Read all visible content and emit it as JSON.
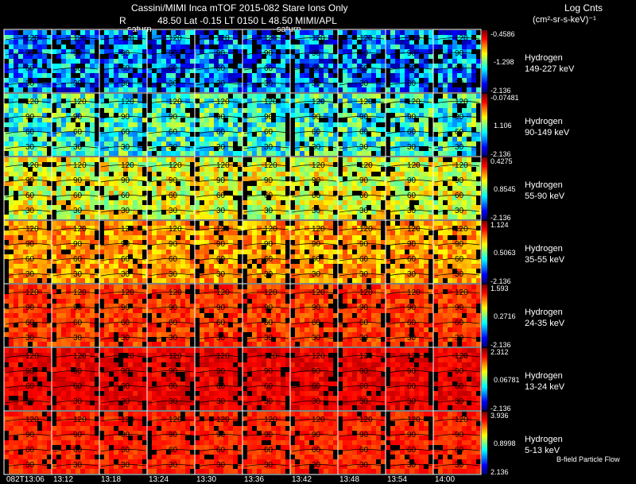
{
  "header": {
    "line1": "Cassini/MIMI Inca mTOF  2015-082   Stare   Ions Only",
    "line2_r": "R",
    "line2_rest": "48.50 Lat -0.15 LT 0150 L         48.50  MIMI/APL",
    "saturn_labels": [
      "saturn",
      "saturn"
    ],
    "units_title": "Log Cnts",
    "units": "(cm²-sr-s-keV)⁻¹"
  },
  "panels": [
    {
      "species": "Hydrogen",
      "energy": "149-227 keV",
      "cb_max": "-0.4586",
      "cb_mid": "-1.298",
      "cb_min": "-2.136",
      "level": 0.25,
      "spread": 0.22,
      "missing": 0.12
    },
    {
      "species": "Hydrogen",
      "energy": "90-149 keV",
      "cb_max": "-0.07481",
      "cb_mid": "1.106",
      "cb_min": "-2.136",
      "level": 0.42,
      "spread": 0.18,
      "missing": 0.08
    },
    {
      "species": "Hydrogen",
      "energy": "55-90 keV",
      "cb_max": "0.4275",
      "cb_mid": "0.8545",
      "cb_min": "-2.136",
      "level": 0.6,
      "spread": 0.14,
      "missing": 0.06
    },
    {
      "species": "Hydrogen",
      "energy": "35-55 keV",
      "cb_max": "1.124",
      "cb_mid": "0.5063",
      "cb_min": "-2.136",
      "level": 0.72,
      "spread": 0.1,
      "missing": 0.05
    },
    {
      "species": "Hydrogen",
      "energy": "24-35 keV",
      "cb_max": "1.593",
      "cb_mid": "0.2716",
      "cb_min": "-2.136",
      "level": 0.82,
      "spread": 0.07,
      "missing": 0.05
    },
    {
      "species": "Hydrogen",
      "energy": "13-24 keV",
      "cb_max": "2.312",
      "cb_mid": "0.06781",
      "cb_min": "-2.136",
      "level": 0.89,
      "spread": 0.05,
      "missing": 0.05
    },
    {
      "species": "Hydrogen",
      "energy": "5-13 keV",
      "cb_max": "3.936",
      "cb_mid": "0.8998",
      "cb_min": "2.136",
      "level": 0.84,
      "spread": 0.05,
      "missing": 0.06
    }
  ],
  "lat_labels": [
    "120",
    "90",
    "60",
    "30"
  ],
  "times": [
    "082T13:06",
    "13:12",
    "13:18",
    "13:24",
    "13:30",
    "13:36",
    "13:42",
    "13:48",
    "13:54",
    "14:00"
  ],
  "footer_note": "B-field Particle Flow",
  "colors": {
    "background": "#000000",
    "grid": "#ffffff"
  }
}
